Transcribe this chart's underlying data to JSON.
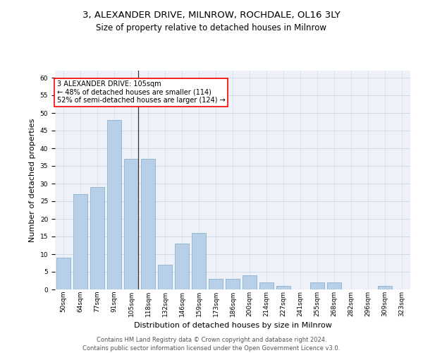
{
  "title_line1": "3, ALEXANDER DRIVE, MILNROW, ROCHDALE, OL16 3LY",
  "title_line2": "Size of property relative to detached houses in Milnrow",
  "xlabel": "Distribution of detached houses by size in Milnrow",
  "ylabel": "Number of detached properties",
  "categories": [
    "50sqm",
    "64sqm",
    "77sqm",
    "91sqm",
    "105sqm",
    "118sqm",
    "132sqm",
    "146sqm",
    "159sqm",
    "173sqm",
    "186sqm",
    "200sqm",
    "214sqm",
    "227sqm",
    "241sqm",
    "255sqm",
    "268sqm",
    "282sqm",
    "296sqm",
    "309sqm",
    "323sqm"
  ],
  "values": [
    9,
    27,
    29,
    48,
    37,
    37,
    7,
    13,
    16,
    3,
    3,
    4,
    2,
    1,
    0,
    2,
    2,
    0,
    0,
    1,
    0
  ],
  "bar_color": "#b8cfe8",
  "bar_edge_color": "#7aaac8",
  "highlight_index": 4,
  "highlight_line_color": "#333333",
  "annotation_text": "3 ALEXANDER DRIVE: 105sqm\n← 48% of detached houses are smaller (114)\n52% of semi-detached houses are larger (124) →",
  "annotation_box_color": "white",
  "annotation_box_edge_color": "red",
  "ylim": [
    0,
    62
  ],
  "yticks": [
    0,
    5,
    10,
    15,
    20,
    25,
    30,
    35,
    40,
    45,
    50,
    55,
    60
  ],
  "grid_color": "#c8d8e8",
  "background_color": "#eef2f8",
  "footer_text": "Contains HM Land Registry data © Crown copyright and database right 2024.\nContains public sector information licensed under the Open Government Licence v3.0.",
  "title_fontsize": 9.5,
  "subtitle_fontsize": 8.5,
  "axis_label_fontsize": 8,
  "tick_fontsize": 6.5,
  "annotation_fontsize": 7,
  "footer_fontsize": 6
}
